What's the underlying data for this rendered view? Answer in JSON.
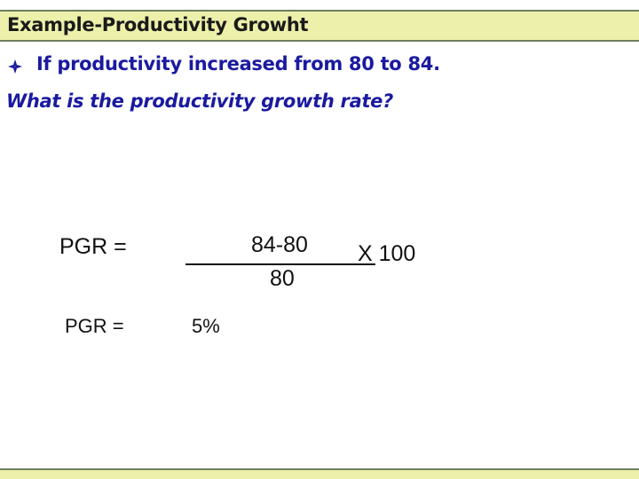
{
  "header": {
    "title": "Example-Productivity Growht"
  },
  "content": {
    "bullet_icon": "diamond-bullet-icon",
    "question_line1": "If productivity increased from 80 to 84.",
    "question_line2": "What is the productivity growth rate?"
  },
  "equation": {
    "label": "PGR =",
    "numerator": "84-80",
    "denominator": "80",
    "multiplier": "X 100"
  },
  "result": {
    "label": "PGR =",
    "value": "5%"
  },
  "colors": {
    "title_bar_fill": "#ecf0aa",
    "title_bar_border": "#6e7d5e",
    "body_text": "#1a1aa0"
  }
}
